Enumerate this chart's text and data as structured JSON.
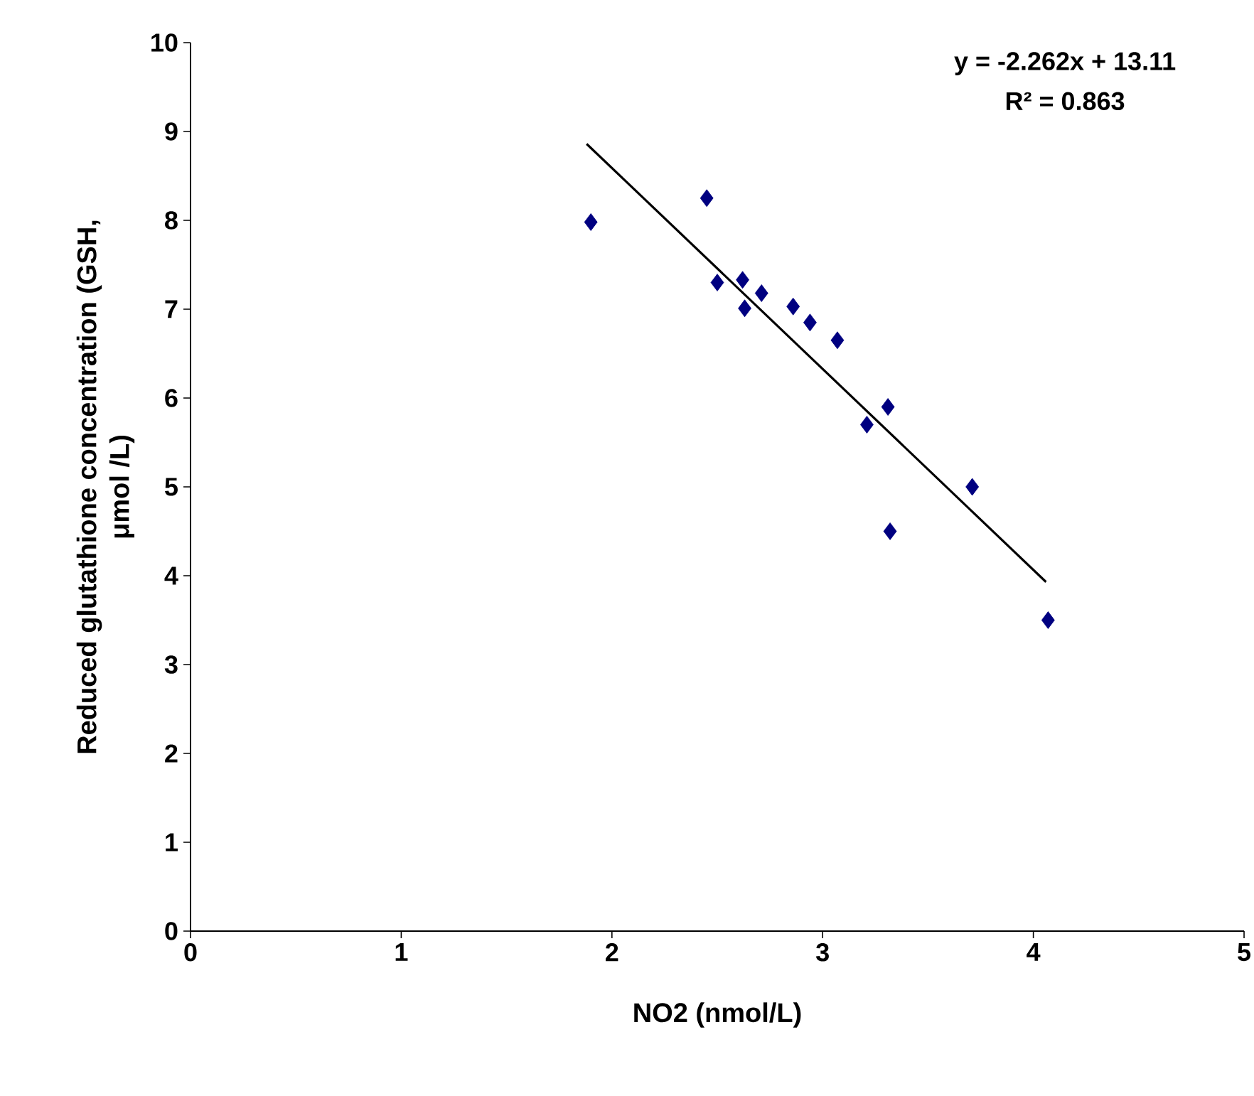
{
  "chart_data": {
    "type": "scatter",
    "xlabel": "NO2 (nmol/L)",
    "ylabel": "Reduced glutathione concentration (GSH, μmol /L)",
    "xlim": [
      0,
      5
    ],
    "xticks": [
      0,
      1,
      2,
      3,
      4,
      5
    ],
    "ylim": [
      0,
      10
    ],
    "yticks": [
      0,
      1,
      2,
      3,
      4,
      5,
      6,
      7,
      8,
      9,
      10
    ],
    "marker": "diamond",
    "grid": false,
    "annotations": [
      "y = -2.262x + 13.11",
      "R² = 0.863"
    ],
    "series": [
      {
        "type": "scatter",
        "color": "#000080",
        "x": [
          1.9,
          2.45,
          2.5,
          2.62,
          2.71,
          2.63,
          2.86,
          2.94,
          3.07,
          3.31,
          3.21,
          3.32,
          3.71,
          4.07
        ],
        "values": [
          7.98,
          8.25,
          7.3,
          7.33,
          7.18,
          7.01,
          7.03,
          6.85,
          6.65,
          5.9,
          5.7,
          4.5,
          5.0,
          3.5
        ]
      },
      {
        "type": "line",
        "color": "#000000",
        "marker": "none",
        "x": [
          1.88,
          4.06
        ],
        "values": [
          8.86,
          3.93
        ]
      }
    ]
  }
}
